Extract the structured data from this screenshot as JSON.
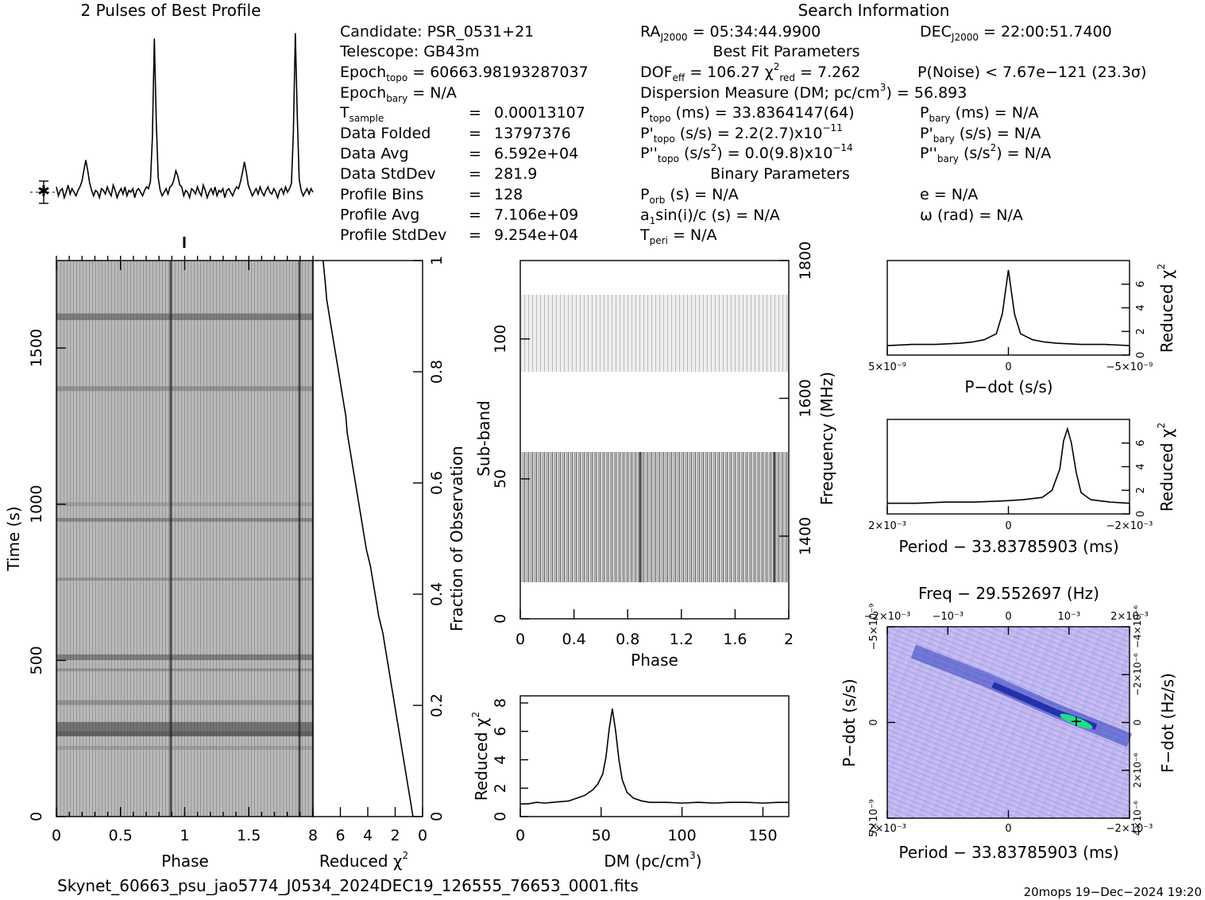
{
  "profile": {
    "title": "2 Pulses of Best Profile",
    "values": [
      0.3,
      -0.2,
      0.1,
      0.2,
      -0.3,
      0.0,
      0.4,
      -0.1,
      0.2,
      0.0,
      -0.2,
      0.1,
      0.3,
      0.6,
      1.2,
      1.8,
      1.2,
      0.5,
      0.1,
      -0.2,
      0.1,
      0.0,
      -0.3,
      0.2,
      0.1,
      -0.1,
      0.3,
      0.0,
      -0.2,
      0.4,
      0.1,
      -0.3,
      0.0,
      0.2,
      -0.1,
      0.3,
      -0.2,
      0.1,
      0.0,
      0.2,
      -0.3,
      0.1,
      0.2,
      0.0,
      -0.2,
      0.1,
      0.3,
      0.2,
      0.6,
      3.0,
      8.6,
      4.0,
      0.8,
      0.1,
      -0.2,
      0.0,
      0.2,
      -0.1,
      0.3,
      0.4,
      0.7,
      1.2,
      0.9,
      0.4,
      0.3,
      -0.2,
      0.1,
      0.0,
      -0.3,
      0.2,
      0.1,
      -0.1,
      0.3,
      0.0,
      -0.2,
      0.4,
      0.1,
      -0.3,
      0.0,
      0.2,
      -0.1,
      0.3,
      -0.2,
      0.1,
      0.0,
      0.2,
      -0.3,
      0.1,
      0.2,
      0.0,
      -0.2,
      0.1,
      0.3,
      0.2,
      0.6,
      1.1,
      1.7,
      1.1,
      0.4,
      0.1,
      -0.2,
      0.0,
      0.2,
      -0.1,
      0.3,
      0.0,
      -0.2,
      0.1,
      0.3,
      0.0,
      -0.1,
      0.2,
      0.0,
      -0.3,
      0.1,
      0.2,
      -0.1,
      0.3,
      0.0,
      0.2,
      0.5,
      3.3,
      8.9,
      4.2,
      0.7,
      0.1,
      -0.2,
      0.0,
      0.2,
      -0.1,
      0.2,
      0.0
    ]
  },
  "search_info": {
    "title": "Search Information",
    "candidate": "Candidate:  PSR_0531+21",
    "telescope": "Telescope:  GB43m",
    "epoch_topo": "= 60663.98193287037",
    "epoch_bary": "= N/A",
    "rows": [
      {
        "label": "Data Folded",
        "value": "13797376"
      },
      {
        "label": "Data Avg",
        "value": "6.592e+04"
      },
      {
        "label": "Data StdDev",
        "value": "281.9"
      },
      {
        "label": "Profile Bins",
        "value": "128"
      },
      {
        "label": "Profile Avg",
        "value": "7.106e+09"
      },
      {
        "label": "Profile StdDev",
        "value": "9.254e+04"
      }
    ],
    "t_sample": "0.00013107",
    "ra": "= 05:34:44.9900",
    "dec": "= 22:00:51.7400",
    "best_fit_title": "Best Fit Parameters",
    "dof": "= 106.27",
    "chi2": "= 7.262",
    "pnoise": "P(Noise) < 7.67e−121   (23.3σ)",
    "dm_line": "Dispersion Measure (DM; pc/cm",
    "dm_value": ") = 56.893",
    "ptopo": "(ms) =  33.8364147(64)",
    "pbary": "(ms) = N/A",
    "pdtopo": "(s/s) =  2.2(2.7)x10",
    "pdtopo_exp": "−11",
    "pdbary": "(s/s) = N/A",
    "pddtopo": "= 0.0(9.8)x10",
    "pddtopo_exp": "−14",
    "pddbary": "= N/A",
    "binary_title": "Binary Parameters",
    "porb": "(s) = N/A",
    "a1sini": "sin(i)/c (s) = N/A",
    "tperi": "= N/A",
    "ecc": "e = N/A",
    "omega": "ω (rad) = N/A"
  },
  "time_phase": {
    "xlabel": "Phase",
    "ylabel": "Time (s)",
    "xticks": [
      "0",
      "0.5",
      "1",
      "1.5"
    ],
    "yticks": [
      "0",
      "500",
      "1000",
      "1500"
    ],
    "xlim": [
      0,
      2
    ],
    "ylim": [
      0,
      1780
    ]
  },
  "chi_vs_time": {
    "xlabel": "Reduced χ",
    "ylabel": "Fraction of Observation",
    "xticks": [
      "8",
      "6",
      "4",
      "2",
      "0"
    ],
    "yticks": [
      "0",
      "0.2",
      "0.4",
      "0.6",
      "0.8",
      "1"
    ],
    "chi": [
      0.7,
      0.9,
      1.1,
      1.3,
      1.5,
      1.7,
      1.9,
      2.1,
      2.3,
      2.5,
      2.7,
      2.9,
      3.2,
      3.4,
      3.6,
      3.8,
      4.1,
      4.3,
      4.5,
      4.7,
      4.9,
      5.1,
      5.3,
      5.5,
      5.6,
      5.8,
      6.0,
      6.2,
      6.4,
      6.6,
      6.8,
      7.0,
      7.1,
      7.26
    ],
    "frac": [
      0.0,
      0.03,
      0.06,
      0.09,
      0.12,
      0.15,
      0.18,
      0.21,
      0.24,
      0.27,
      0.3,
      0.33,
      0.36,
      0.39,
      0.42,
      0.45,
      0.48,
      0.51,
      0.54,
      0.57,
      0.6,
      0.63,
      0.66,
      0.69,
      0.72,
      0.75,
      0.78,
      0.81,
      0.84,
      0.87,
      0.9,
      0.93,
      0.96,
      1.0
    ]
  },
  "subband": {
    "xlabel": "Phase",
    "ylabel": "Sub-band",
    "rlabel": "Frequency (MHz)",
    "xticks": [
      "0",
      "0.4",
      "0.8",
      "1.2",
      "1.6",
      "2"
    ],
    "yticks": [
      "0",
      "50",
      "100"
    ],
    "rticks": [
      "1400",
      "1600",
      "1800"
    ]
  },
  "dm_plot": {
    "xlabel": "DM (pc/cm",
    "ylabel": "Reduced χ",
    "xticks": [
      "0",
      "50",
      "100",
      "150"
    ],
    "yticks": [
      "0",
      "2",
      "4",
      "6",
      "8"
    ],
    "xlim": [
      0,
      166
    ],
    "ylim": [
      0,
      8.5
    ]
  },
  "pdot_plot": {
    "xlabel": "P−dot (s/s)",
    "ylabel": "Reduced χ",
    "xticks": [
      "5×10⁻⁹",
      "0",
      "−5×10⁻⁹"
    ],
    "yticks": [
      "0",
      "2",
      "4",
      "6"
    ]
  },
  "period_plot": {
    "xlabel": "Period − 33.83785903 (ms)",
    "ylabel": "Reduced χ",
    "xticks": [
      "2×10⁻³",
      "0",
      "−2×10⁻³"
    ],
    "yticks": [
      "0",
      "2",
      "4",
      "6"
    ]
  },
  "pp_plot": {
    "title": "Freq − 29.552697 (Hz)",
    "top_ticks": [
      "−2×10⁻³",
      "−10⁻³",
      "0",
      "10⁻³",
      "2×10⁻³"
    ],
    "xlabel": "Period − 33.83785903 (ms)",
    "xticks": [
      "2×10⁻³",
      "0",
      "−2×10⁻³"
    ],
    "ylabel": "P−dot (s/s)",
    "yticks": [
      "−5×10⁻⁹",
      "0",
      "5×10⁻⁹"
    ],
    "rlabel": "F−dot (Hz/s)",
    "rticks": [
      "4×10⁻⁶",
      "2×10⁻⁶",
      "0",
      "−2×10⁻⁶",
      "−4×10⁻⁶"
    ]
  },
  "footer": {
    "filename": "Skynet_60663_psu_jao5774_J0534_2024DEC19_126555_76653_0001.fits",
    "stamp": "20mops 19−Dec−2024 19:20"
  },
  "chart_data": {
    "type": "line",
    "title": "2 Pulses of Best Profile",
    "dm": {
      "x": [
        0,
        5,
        10,
        15,
        20,
        25,
        30,
        35,
        40,
        45,
        48,
        51,
        53,
        55,
        56.9,
        59,
        61,
        63,
        66,
        70,
        75,
        80,
        90,
        100,
        110,
        120,
        130,
        140,
        150,
        160,
        166
      ],
      "y": [
        0.9,
        0.9,
        1.0,
        0.95,
        1.0,
        1.05,
        1.1,
        1.3,
        1.5,
        1.9,
        2.3,
        3.0,
        4.2,
        6.2,
        7.6,
        6.0,
        4.0,
        2.6,
        1.7,
        1.3,
        1.1,
        1.0,
        1.0,
        0.95,
        1.0,
        0.95,
        1.0,
        1.0,
        0.95,
        1.0,
        1.0
      ]
    },
    "pdot": {
      "x": [
        -1,
        -0.8,
        -0.6,
        -0.4,
        -0.3,
        -0.2,
        -0.1,
        -0.05,
        0,
        0.05,
        0.1,
        0.2,
        0.3,
        0.4,
        0.6,
        0.8,
        1
      ],
      "y": [
        0.8,
        0.9,
        0.9,
        1.0,
        1.1,
        1.3,
        1.8,
        3.5,
        7.2,
        3.5,
        1.8,
        1.3,
        1.1,
        1.0,
        0.9,
        0.9,
        0.8
      ]
    },
    "period": {
      "x": [
        -1,
        -0.7,
        -0.4,
        -0.1,
        0.2,
        0.4,
        0.6,
        0.7,
        0.78,
        0.82,
        0.86,
        0.9,
        0.95,
        1.0,
        1.1,
        1.3,
        1.5
      ],
      "y": [
        0.9,
        0.9,
        1.0,
        1.0,
        1.1,
        1.2,
        1.4,
        2.0,
        3.8,
        6.2,
        7.2,
        6.0,
        3.5,
        1.8,
        1.2,
        1.0,
        0.9
      ]
    }
  }
}
